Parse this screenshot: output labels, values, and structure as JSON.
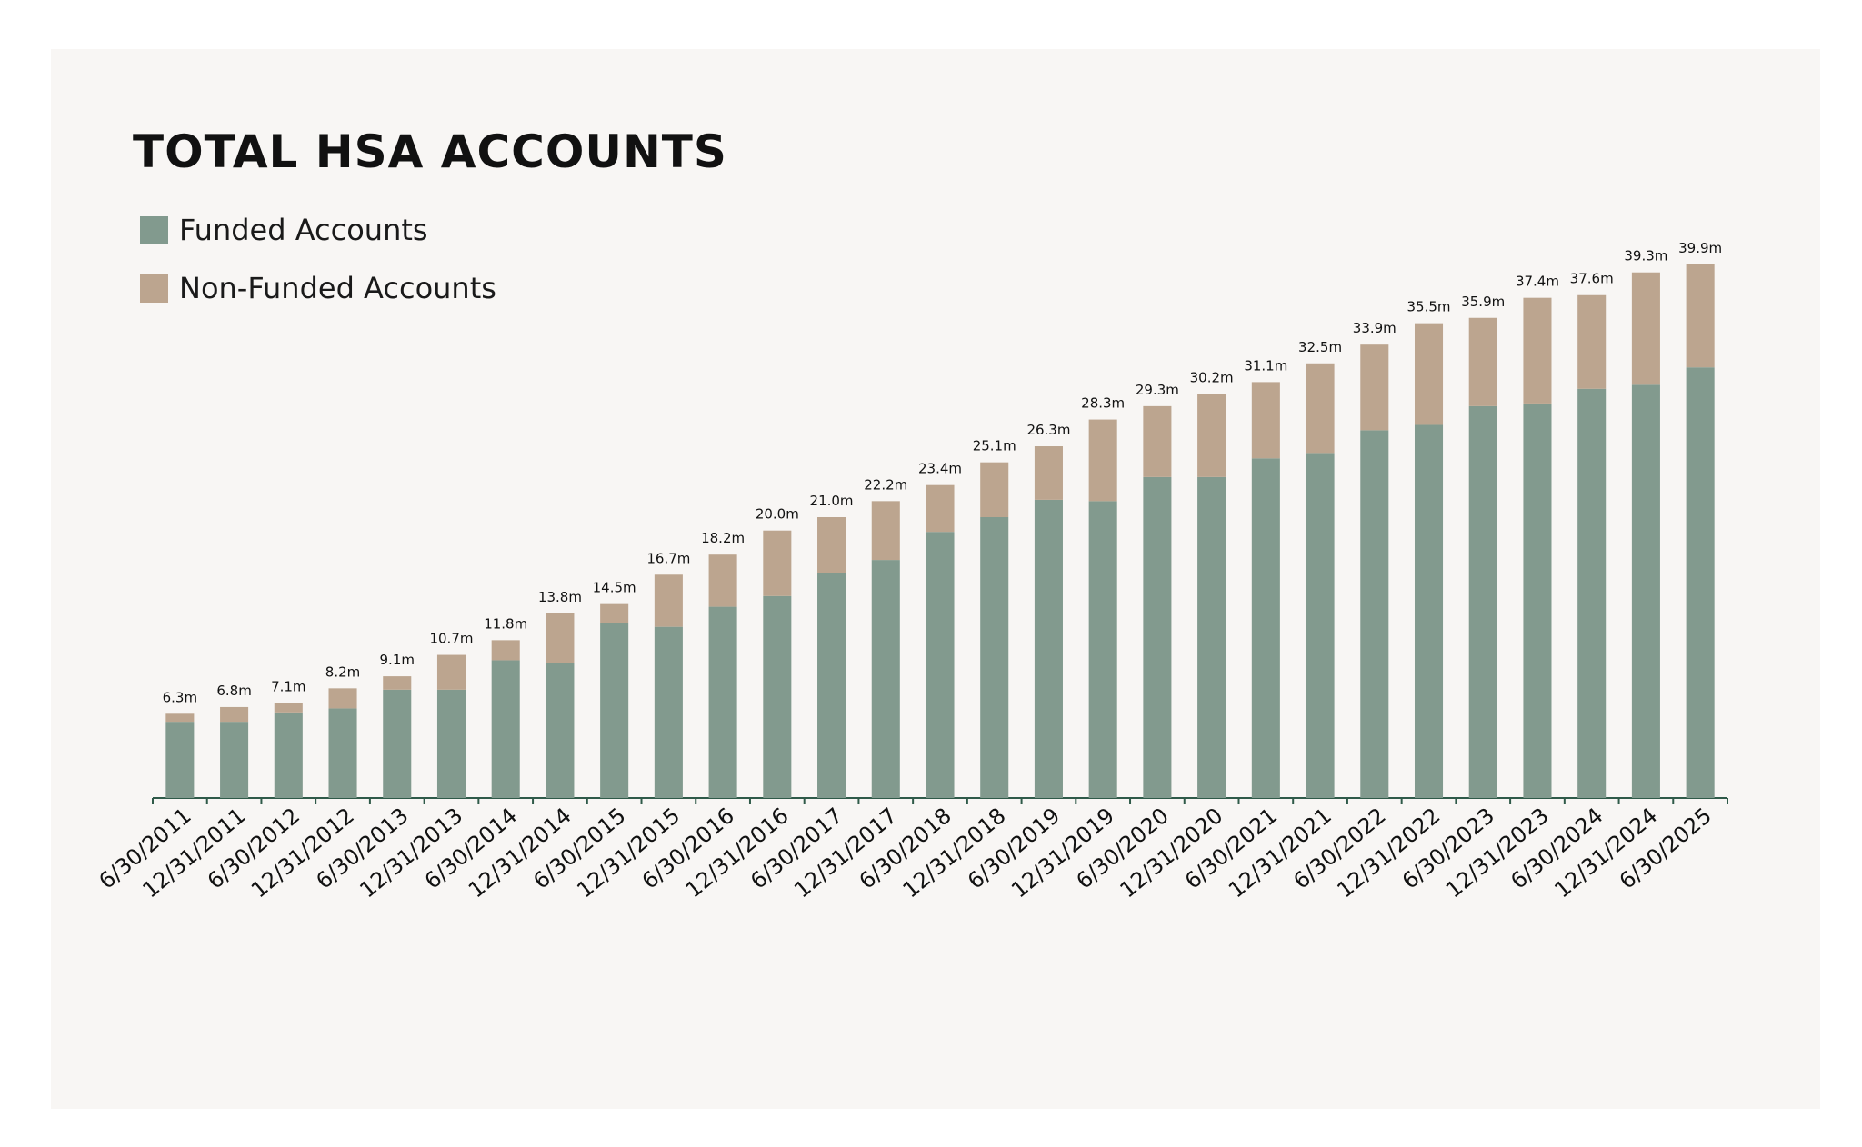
{
  "chart_data": {
    "type": "bar",
    "stacked": true,
    "title": "TOTAL HSA ACCOUNTS",
    "legend_placement": "top-left",
    "grid": false,
    "ylim": [
      0,
      42
    ],
    "categories": [
      "6/30/2011",
      "12/31/2011",
      "6/30/2012",
      "12/31/2012",
      "6/30/2013",
      "12/31/2013",
      "6/30/2014",
      "12/31/2014",
      "6/30/2015",
      "12/31/2015",
      "6/30/2016",
      "12/31/2016",
      "6/30/2017",
      "12/31/2017",
      "6/30/2018",
      "12/31/2018",
      "6/30/2019",
      "12/31/2019",
      "6/30/2020",
      "12/31/2020",
      "6/30/2021",
      "12/31/2021",
      "6/30/2022",
      "12/31/2022",
      "6/30/2023",
      "12/31/2023",
      "6/30/2024",
      "12/31/2024",
      "6/30/2025"
    ],
    "series": [
      {
        "name": "Funded Accounts",
        "color": "#829a8e",
        "values": [
          5.7,
          5.7,
          6.4,
          6.7,
          8.1,
          8.1,
          10.3,
          10.1,
          13.1,
          12.8,
          14.3,
          15.1,
          16.8,
          17.8,
          19.9,
          21.0,
          22.3,
          22.2,
          24.0,
          24.0,
          25.4,
          25.8,
          27.5,
          27.9,
          29.3,
          29.5,
          30.6,
          30.9,
          32.2
        ]
      },
      {
        "name": "Non-Funded Accounts",
        "color": "#bca58f",
        "values": [
          0.6,
          1.1,
          0.7,
          1.5,
          1.0,
          2.6,
          1.5,
          3.7,
          1.4,
          3.9,
          3.9,
          4.9,
          4.2,
          4.4,
          3.5,
          4.1,
          4.0,
          6.1,
          5.3,
          6.2,
          5.7,
          6.7,
          6.4,
          7.6,
          6.6,
          7.9,
          7.0,
          8.4,
          7.7
        ]
      }
    ],
    "totals": [
      6.3,
      6.8,
      7.1,
      8.2,
      9.1,
      10.7,
      11.8,
      13.8,
      14.5,
      16.7,
      18.2,
      20.0,
      21.0,
      22.2,
      23.4,
      25.1,
      26.3,
      28.3,
      29.3,
      30.2,
      31.1,
      32.5,
      33.9,
      35.5,
      35.9,
      37.4,
      37.6,
      39.3,
      39.9
    ],
    "total_labels": [
      "6.3m",
      "6.8m",
      "7.1m",
      "8.2m",
      "9.1m",
      "10.7m",
      "11.8m",
      "13.8m",
      "14.5m",
      "16.7m",
      "18.2m",
      "20.0m",
      "21.0m",
      "22.2m",
      "23.4m",
      "25.1m",
      "26.3m",
      "28.3m",
      "29.3m",
      "30.2m",
      "31.1m",
      "32.5m",
      "33.9m",
      "35.5m",
      "35.9m",
      "37.4m",
      "37.6m",
      "39.3m",
      "39.9m"
    ]
  }
}
